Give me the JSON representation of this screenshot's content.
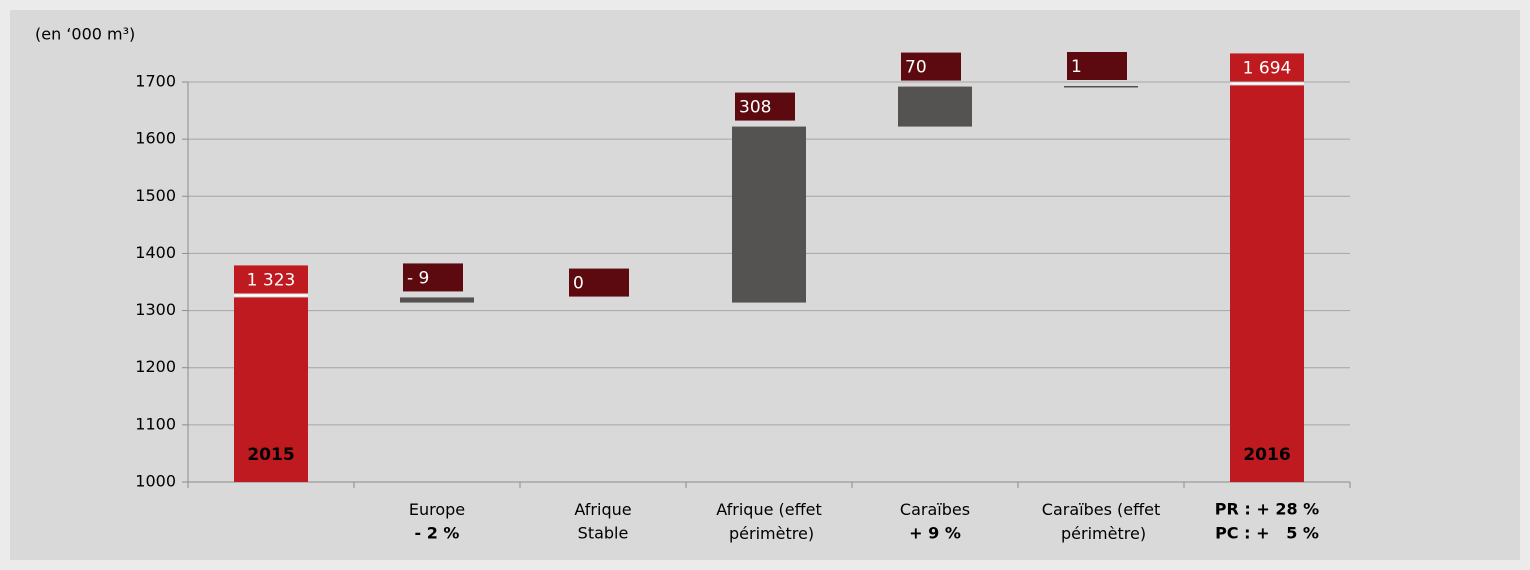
{
  "chart_data": {
    "type": "waterfall",
    "ylabel": "(en ‘000 m³)",
    "categories": [
      null,
      "Europe",
      "Afrique",
      "Afrique (effet périmètre)",
      "Caraïbes",
      "Caraïbes (effet périmètre)",
      null
    ],
    "notes": [
      null,
      "- 2 %",
      "Stable",
      null,
      "+ 9 %",
      null,
      null
    ],
    "bar_labels": [
      "2015",
      null,
      null,
      null,
      null,
      null,
      "2016"
    ],
    "total_notes": [
      "PR : + 28 %",
      "PC : +   5 %"
    ],
    "values": [
      1323,
      -9,
      0,
      308,
      70,
      1,
      1694
    ],
    "value_labels": [
      "1 323",
      "- 9",
      "0",
      "308",
      "70",
      "1",
      "1 694"
    ],
    "is_total": [
      true,
      false,
      false,
      false,
      false,
      false,
      true
    ],
    "total_color": "#be1a20",
    "delta_color": "#555351",
    "delta_label_color": "#5c0a10",
    "ylim": [
      1000,
      1700
    ],
    "yticks": [
      1000,
      1100,
      1200,
      1300,
      1400,
      1500,
      1600,
      1700
    ],
    "grid": true
  }
}
